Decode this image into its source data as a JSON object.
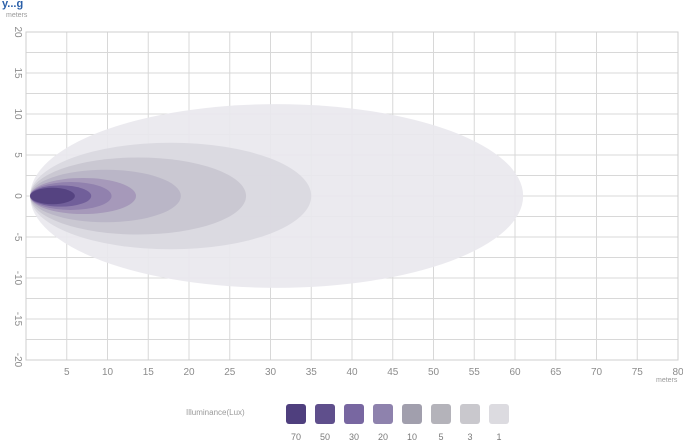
{
  "chart_data": {
    "type": "area",
    "title": "",
    "title_fragment": "y...g",
    "x_unit": "meters",
    "y_unit": "meters",
    "xlim": [
      0,
      80
    ],
    "ylim": [
      -20,
      20
    ],
    "x_ticks": [
      5,
      10,
      15,
      20,
      25,
      30,
      35,
      40,
      45,
      50,
      55,
      60,
      65,
      70,
      75,
      80
    ],
    "y_ticks": [
      20,
      15,
      10,
      5,
      0,
      -5,
      -10,
      -15,
      -20
    ],
    "grid": true,
    "legend_title": "Illuminance(Lux)",
    "legend_position": "bottom",
    "series": [
      {
        "name": "1",
        "x_start": 0.5,
        "x_end": 61,
        "half_width": 11.2,
        "color": "#e9e8ee"
      },
      {
        "name": "3",
        "x_start": 0.5,
        "x_end": 35,
        "half_width": 6.5,
        "color": "#d9d8df"
      },
      {
        "name": "5",
        "x_start": 0.5,
        "x_end": 27,
        "half_width": 4.7,
        "color": "#c9c7d0"
      },
      {
        "name": "10",
        "x_start": 0.5,
        "x_end": 19,
        "half_width": 3.2,
        "color": "#b9b4c5"
      },
      {
        "name": "20",
        "x_start": 0.5,
        "x_end": 13.5,
        "half_width": 2.2,
        "color": "#a497b9"
      },
      {
        "name": "30",
        "x_start": 0.5,
        "x_end": 10.5,
        "half_width": 1.7,
        "color": "#8f7fad"
      },
      {
        "name": "50",
        "x_start": 0.5,
        "x_end": 8,
        "half_width": 1.3,
        "color": "#6f5c98"
      },
      {
        "name": "70",
        "x_start": 0.5,
        "x_end": 6,
        "half_width": 1.0,
        "color": "#52417f"
      }
    ],
    "legend": [
      {
        "label": "70",
        "color": "#4f3f7e"
      },
      {
        "label": "50",
        "color": "#5f4f8c"
      },
      {
        "label": "30",
        "color": "#7867a1"
      },
      {
        "label": "20",
        "color": "#8e82ad"
      },
      {
        "label": "10",
        "color": "#a19fad"
      },
      {
        "label": "5",
        "color": "#b4b3ba"
      },
      {
        "label": "3",
        "color": "#c9c8cd"
      },
      {
        "label": "1",
        "color": "#dcdbe0"
      }
    ]
  }
}
